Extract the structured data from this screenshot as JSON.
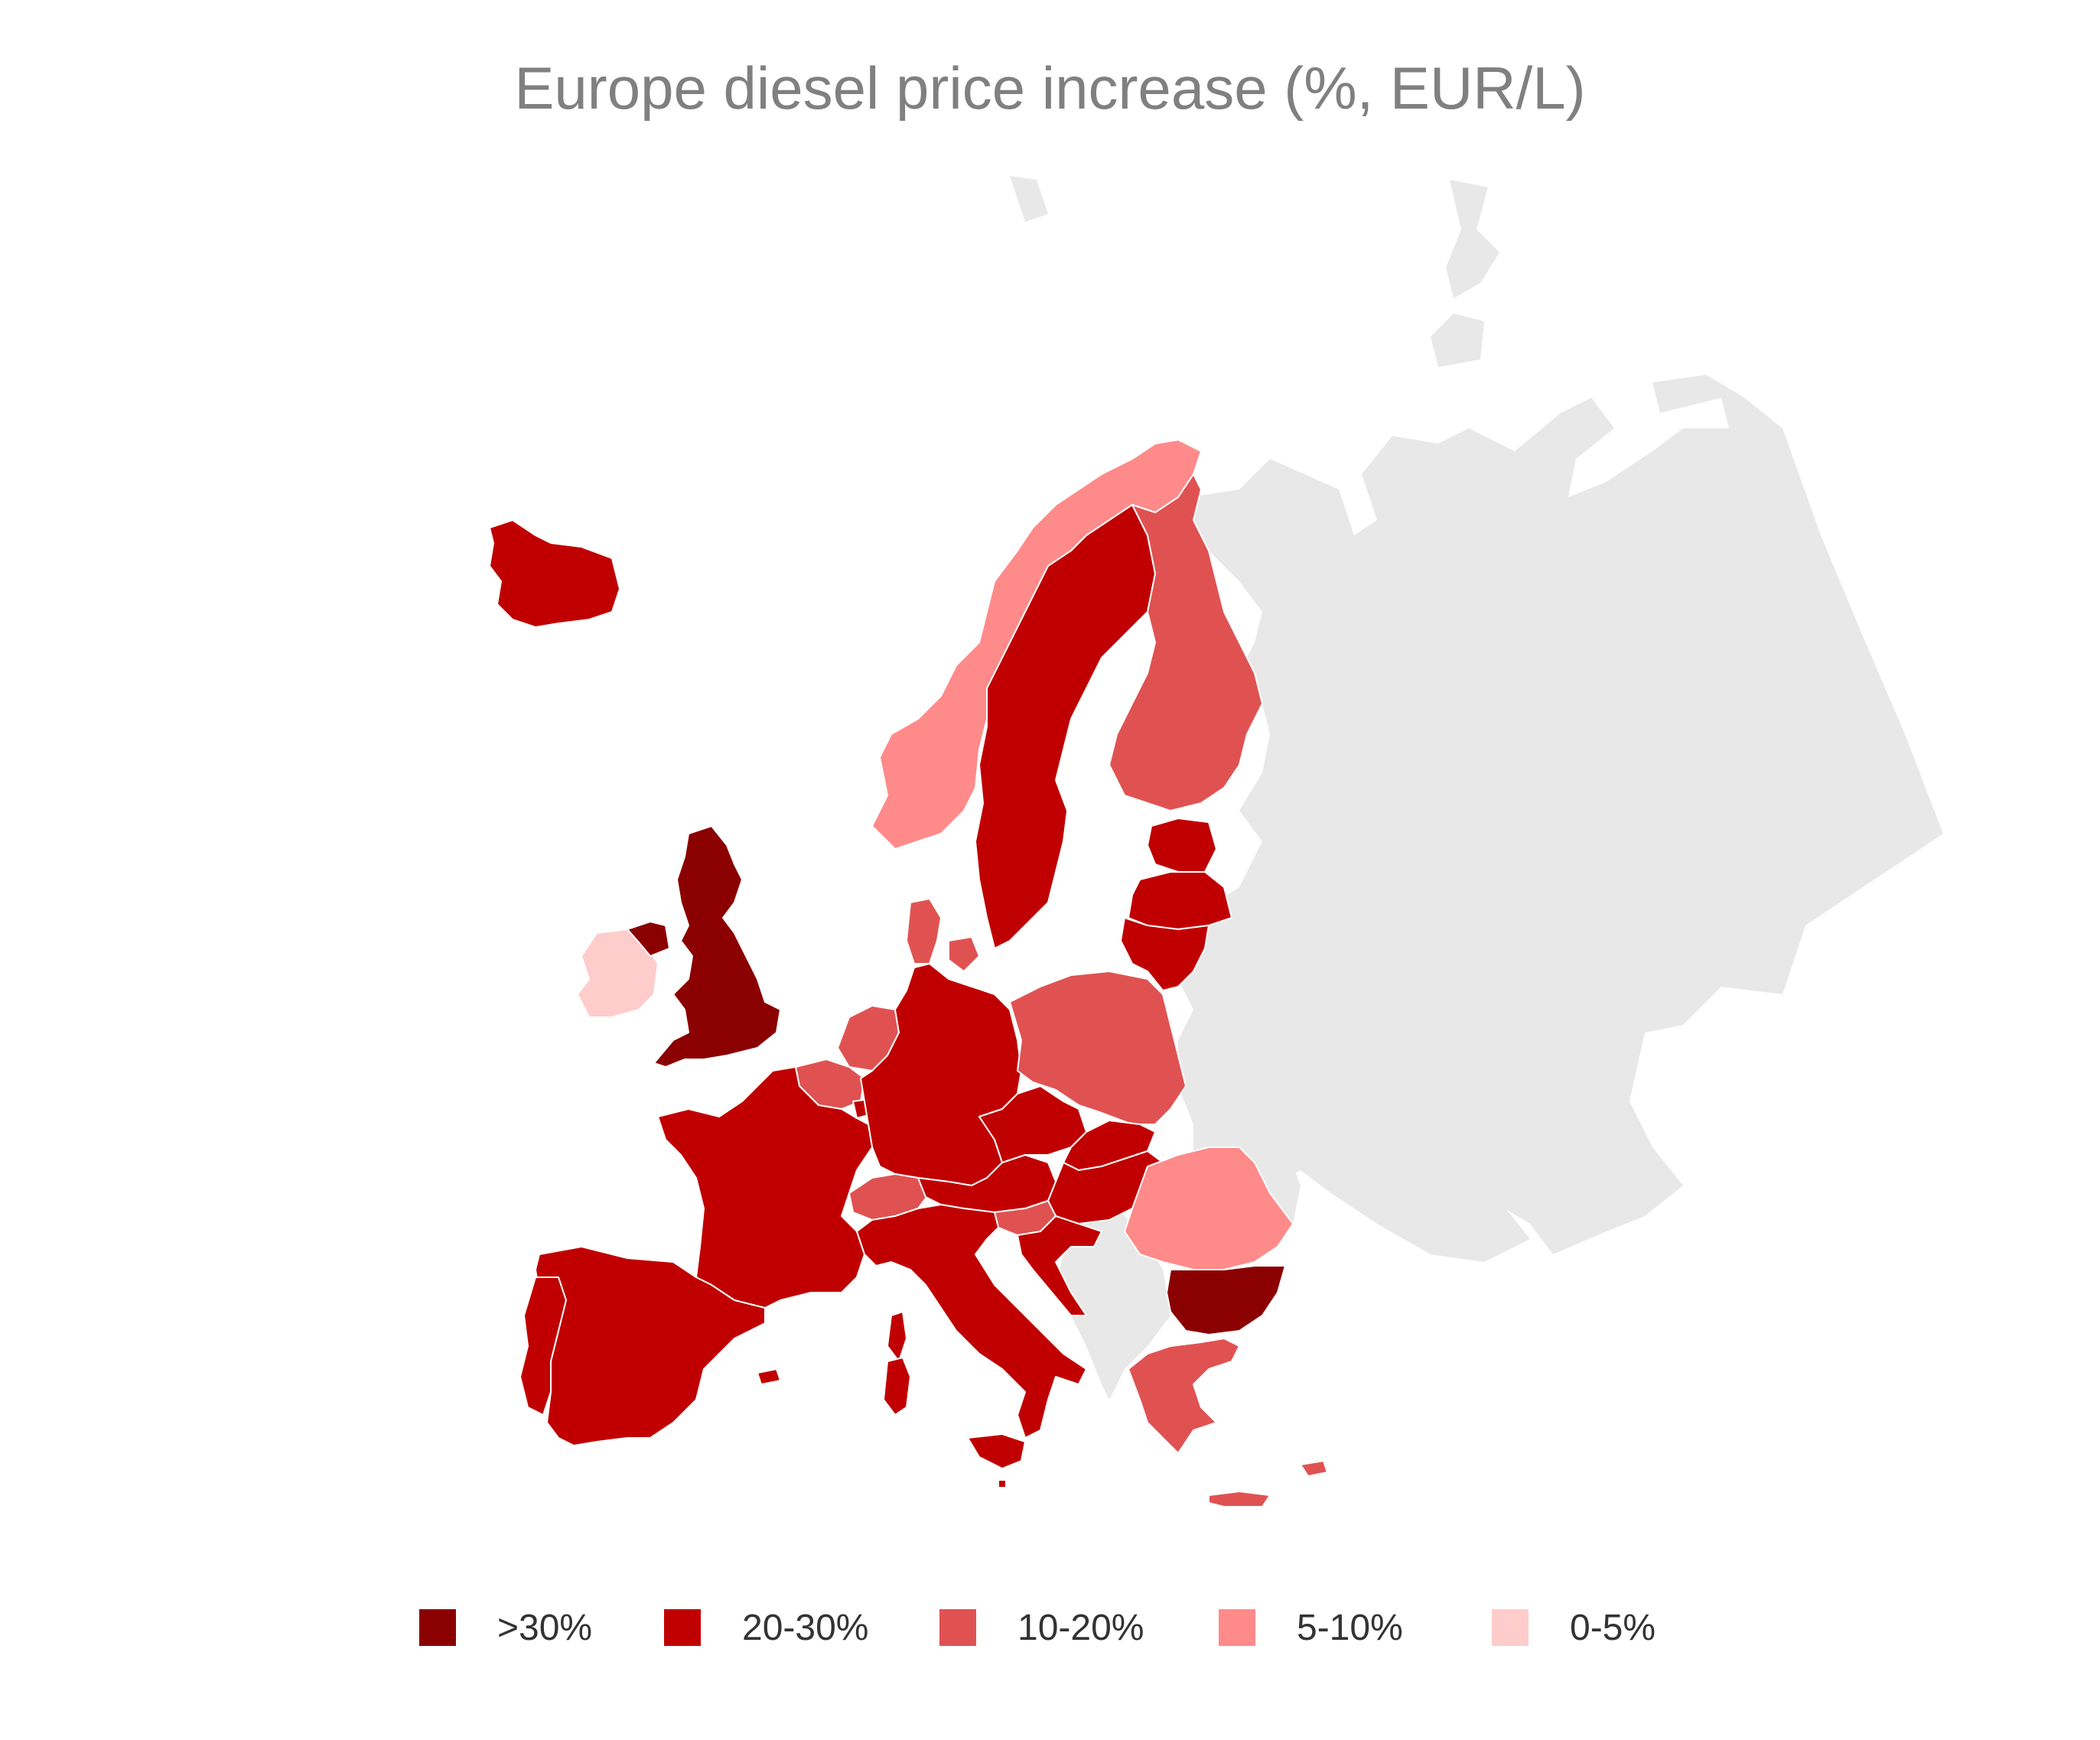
{
  "title": "Europe diesel price increase (%, EUR/L)",
  "colors": {
    "no_data": "#e8e8e8",
    "gt30": "#8b0000",
    "20-30": "#c00000",
    "10-20": "#e05252",
    "5-10": "#ff8a8a",
    "0-5": "#ffcccc"
  },
  "legend": [
    {
      "key": "gt30",
      "label": ">30%"
    },
    {
      "key": "20-30",
      "label": "20-30%"
    },
    {
      "key": "10-20",
      "label": "10-20%"
    },
    {
      "key": "5-10",
      "label": "5-10%"
    },
    {
      "key": "0-5",
      "label": "0-5%"
    }
  ],
  "regions": {
    "iceland": "20-30",
    "ireland": "0-5",
    "united-kingdom": "gt30",
    "norway": "5-10",
    "sweden": "20-30",
    "finland": "10-20",
    "estonia": "20-30",
    "latvia": "20-30",
    "lithuania": "20-30",
    "denmark": "10-20",
    "netherlands": "10-20",
    "belgium": "10-20",
    "luxembourg": "20-30",
    "germany": "20-30",
    "poland": "10-20",
    "france": "20-30",
    "switzerland": "10-20",
    "austria": "20-30",
    "czechia": "20-30",
    "slovakia": "20-30",
    "hungary": "20-30",
    "slovenia": "10-20",
    "croatia": "20-30",
    "italy": "20-30",
    "spain": "20-30",
    "portugal": "20-30",
    "romania": "5-10",
    "bulgaria": "gt30",
    "greece": "10-20",
    "cyprus": "10-20",
    "malta": "20-30"
  }
}
